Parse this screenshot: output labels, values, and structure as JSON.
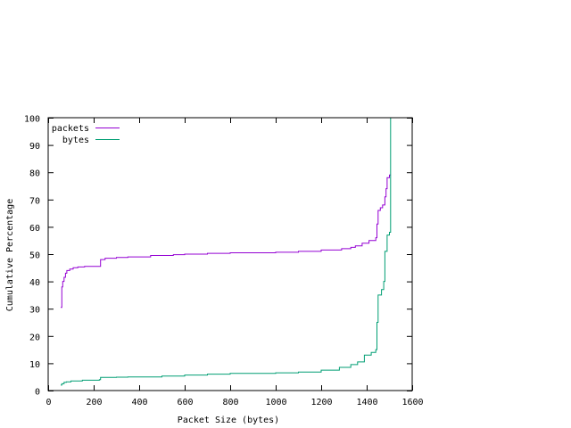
{
  "chart_data": {
    "type": "line",
    "title": "",
    "xlabel": "Packet Size (bytes)",
    "ylabel": "Cumulative Percentage",
    "xlim": [
      0,
      1600
    ],
    "ylim": [
      0,
      100
    ],
    "x_ticks": [
      "0",
      "200",
      "400",
      "600",
      "800",
      "1000",
      "1200",
      "1400",
      "1600"
    ],
    "y_ticks": [
      "0",
      "10",
      "20",
      "30",
      "40",
      "50",
      "60",
      "70",
      "80",
      "90",
      "100"
    ],
    "grid": false,
    "legend_position": "top-left",
    "series": [
      {
        "name": "packets",
        "color": "#9400d3",
        "step": true,
        "points": [
          [
            55,
            30.5
          ],
          [
            60,
            38
          ],
          [
            64,
            40
          ],
          [
            70,
            41.5
          ],
          [
            76,
            43
          ],
          [
            82,
            44
          ],
          [
            95,
            44.5
          ],
          [
            110,
            45
          ],
          [
            130,
            45.3
          ],
          [
            160,
            45.5
          ],
          [
            225,
            45.5
          ],
          [
            230,
            48
          ],
          [
            250,
            48.5
          ],
          [
            300,
            48.8
          ],
          [
            350,
            49
          ],
          [
            450,
            49.5
          ],
          [
            550,
            49.8
          ],
          [
            600,
            50
          ],
          [
            700,
            50.3
          ],
          [
            800,
            50.5
          ],
          [
            900,
            50.5
          ],
          [
            1000,
            50.7
          ],
          [
            1100,
            51
          ],
          [
            1200,
            51.5
          ],
          [
            1290,
            52
          ],
          [
            1330,
            52.5
          ],
          [
            1350,
            53
          ],
          [
            1380,
            54
          ],
          [
            1410,
            55
          ],
          [
            1440,
            56
          ],
          [
            1445,
            61
          ],
          [
            1450,
            66
          ],
          [
            1460,
            67
          ],
          [
            1470,
            68
          ],
          [
            1480,
            71
          ],
          [
            1485,
            74
          ],
          [
            1490,
            78
          ],
          [
            1500,
            79
          ],
          [
            1505,
            79
          ]
        ]
      },
      {
        "name": "bytes",
        "color": "#009e73",
        "step": true,
        "points": [
          [
            55,
            2
          ],
          [
            60,
            2.5
          ],
          [
            70,
            3
          ],
          [
            80,
            3.2
          ],
          [
            100,
            3.5
          ],
          [
            150,
            3.8
          ],
          [
            225,
            4
          ],
          [
            230,
            4.8
          ],
          [
            300,
            4.9
          ],
          [
            350,
            5
          ],
          [
            500,
            5.3
          ],
          [
            600,
            5.7
          ],
          [
            700,
            6
          ],
          [
            800,
            6.3
          ],
          [
            1000,
            6.5
          ],
          [
            1100,
            6.8
          ],
          [
            1200,
            7.5
          ],
          [
            1280,
            8.5
          ],
          [
            1330,
            9.5
          ],
          [
            1360,
            10.5
          ],
          [
            1390,
            13
          ],
          [
            1420,
            14
          ],
          [
            1440,
            15
          ],
          [
            1445,
            25
          ],
          [
            1450,
            35
          ],
          [
            1465,
            37
          ],
          [
            1475,
            40
          ],
          [
            1480,
            51
          ],
          [
            1490,
            57
          ],
          [
            1500,
            58
          ],
          [
            1505,
            100
          ]
        ]
      }
    ]
  }
}
